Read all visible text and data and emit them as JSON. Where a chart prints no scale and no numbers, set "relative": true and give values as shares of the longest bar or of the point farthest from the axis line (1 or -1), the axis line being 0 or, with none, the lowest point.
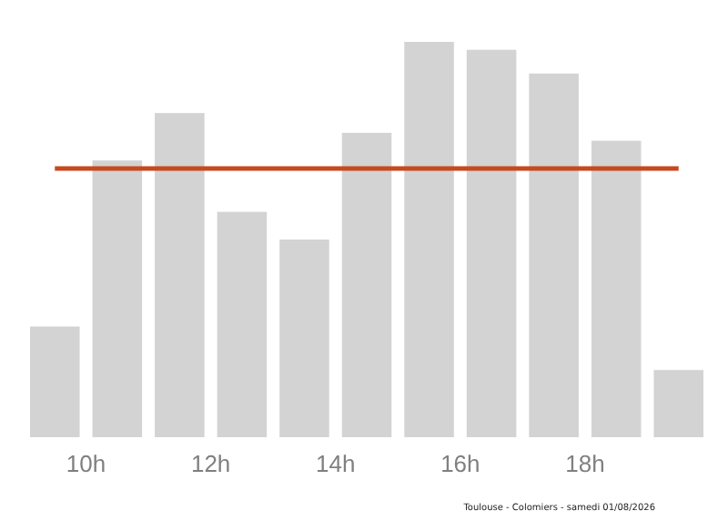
{
  "chart_data": {
    "type": "bar",
    "relative": true,
    "x": [
      9.5,
      10.5,
      11.5,
      12.5,
      13.5,
      14.5,
      15.5,
      16.5,
      17.5,
      18.5,
      19.5
    ],
    "values": [
      0.28,
      0.7,
      0.82,
      0.57,
      0.5,
      0.77,
      1,
      0.98,
      0.92,
      0.75,
      0.17
    ],
    "color": "#d3d3d3",
    "xlim": [
      9,
      20
    ],
    "xticks": [
      {
        "value": 10,
        "label": "10h"
      },
      {
        "value": 12,
        "label": "12h"
      },
      {
        "value": 14,
        "label": "14h"
      },
      {
        "value": 16,
        "label": "16h"
      },
      {
        "value": 18,
        "label": "18h"
      }
    ],
    "ref_lines": [
      {
        "axis": "y",
        "value": 0.68,
        "color": "#c8491e"
      }
    ],
    "annotations": [
      "Toulouse - Colomiers - samedi 01/08/2026"
    ]
  }
}
